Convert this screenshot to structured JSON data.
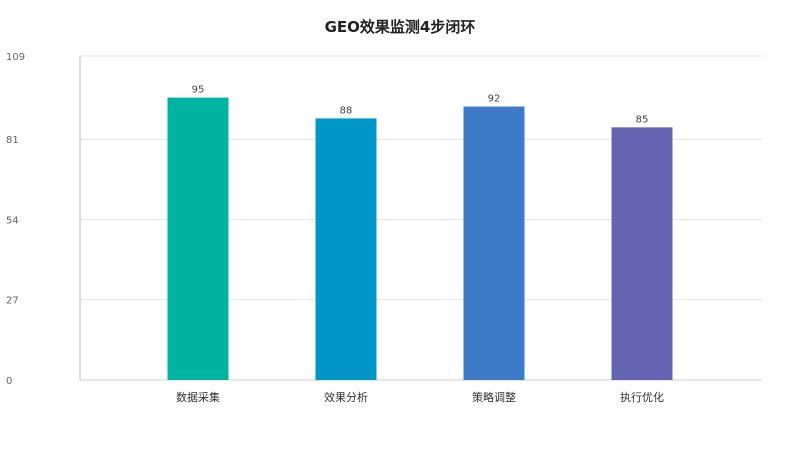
{
  "chart_data": {
    "type": "bar",
    "title": "GEO效果监测4步闭环",
    "xlabel": "",
    "ylabel": "",
    "categories": [
      "数据采集",
      "效果分析",
      "策略调整",
      "执行优化"
    ],
    "values": [
      95,
      88,
      92,
      85
    ],
    "ylim": [
      0,
      109
    ],
    "yticks": [
      "0",
      "27",
      "54",
      "81",
      "109"
    ],
    "data_labels": [
      "95",
      "88",
      "92",
      "85"
    ],
    "bar_colors": [
      "#00b3a0",
      "#0096c8",
      "#3d7bc8",
      "#6264b2"
    ],
    "grid": true,
    "legend": "none"
  }
}
